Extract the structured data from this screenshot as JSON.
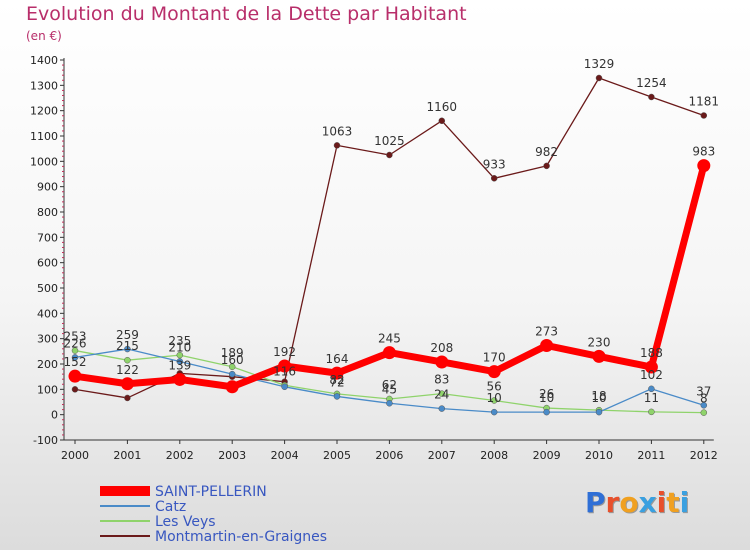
{
  "title": "Evolution du Montant de la Dette par Habitant",
  "unit": "(en €)",
  "logo": {
    "text": "Proxiti",
    "letters": [
      "P",
      "r",
      "o",
      "x",
      "i",
      "t",
      "i"
    ],
    "colors": [
      "#2f6fd6",
      "#e8502c",
      "#f0a020",
      "#3aa0e0",
      "#e8502c",
      "#f0a020",
      "#3aa0e0"
    ]
  },
  "chart_data": {
    "type": "line",
    "x": [
      "2000",
      "2001",
      "2002",
      "2003",
      "2004",
      "2005",
      "2006",
      "2007",
      "2008",
      "2009",
      "2010",
      "2011",
      "2012"
    ],
    "ylim": [
      -100,
      1400
    ],
    "yticks": [
      "-100",
      "0",
      "100",
      "200",
      "300",
      "400",
      "500",
      "600",
      "700",
      "800",
      "900",
      "1000",
      "1100",
      "1200",
      "1300",
      "1400"
    ],
    "grid": false,
    "legend_position": "bottom-left",
    "series": [
      {
        "name": "Montmartin-en-Graignes",
        "color": "#6b1a1a",
        "values": [
          100,
          66,
          163,
          150,
          130,
          1063,
          1025,
          1160,
          933,
          982,
          1329,
          1254,
          1181
        ],
        "labels": [
          "",
          "",
          "",
          "",
          "",
          "1063",
          "1025",
          "1160",
          "933",
          "982",
          "1329",
          "1254",
          "1181"
        ]
      },
      {
        "name": "Les Veys",
        "color": "#8fd36b",
        "values": [
          253,
          215,
          235,
          189,
          116,
          82,
          62,
          83,
          56,
          26,
          18,
          11,
          8
        ],
        "labels": [
          "253",
          "215",
          "235",
          "189",
          "116",
          "82",
          "62",
          "83",
          "56",
          "26",
          "18",
          "11",
          "8"
        ]
      },
      {
        "name": "Catz",
        "color": "#4a8bc8",
        "values": [
          226,
          259,
          210,
          160,
          110,
          72,
          45,
          24,
          10,
          10,
          10,
          102,
          37
        ],
        "labels": [
          "226",
          "259",
          "210",
          "160",
          "",
          "72",
          "45",
          "24",
          "10",
          "10",
          "10",
          "102",
          "37"
        ]
      },
      {
        "name": "SAINT-PELLERIN",
        "color": "#ff0000",
        "values": [
          152,
          122,
          139,
          110,
          192,
          164,
          245,
          208,
          170,
          273,
          230,
          188,
          983
        ],
        "labels": [
          "152",
          "122",
          "139",
          "",
          "192",
          "164",
          "245",
          "208",
          "170",
          "273",
          "230",
          "188",
          "983"
        ]
      }
    ],
    "legend": [
      "SAINT-PELLERIN",
      "Catz",
      "Les Veys",
      "Montmartin-en-Graignes"
    ]
  }
}
